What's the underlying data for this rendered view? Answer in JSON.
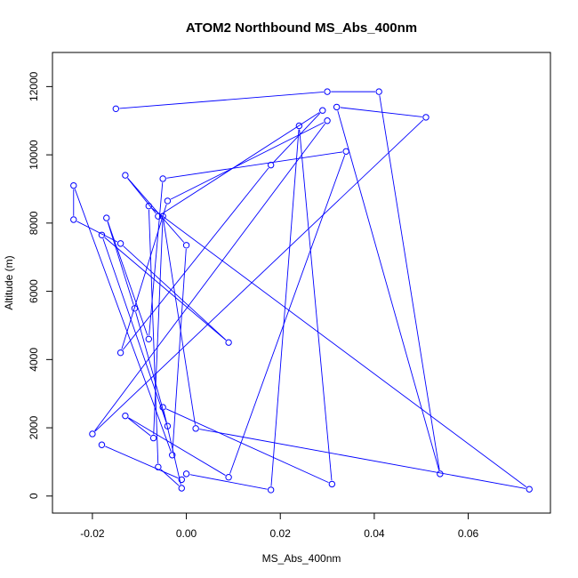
{
  "chart_data": {
    "type": "scatter",
    "title": "ATOM2 Northbound MS_Abs_400nm",
    "xlabel": "MS_Abs_400nm",
    "ylabel": "Altitude (m)",
    "xlim": [
      -0.0285,
      0.0775
    ],
    "ylim": [
      -500,
      13000
    ],
    "x_ticks": [
      -0.02,
      0.0,
      0.02,
      0.04,
      0.06
    ],
    "x_tick_labels": [
      "-0.02",
      "0.00",
      "0.02",
      "0.04",
      "0.06"
    ],
    "y_ticks": [
      0,
      2000,
      4000,
      6000,
      8000,
      10000,
      12000
    ],
    "y_tick_labels": [
      "0",
      "2000",
      "4000",
      "6000",
      "8000",
      "10000",
      "12000"
    ],
    "grid": false,
    "legend": "none",
    "series": [
      {
        "style": "points-and-lines",
        "color": "#0000ff",
        "x": [
          -0.015,
          0.03,
          0.041,
          0.054,
          0.032,
          0.051,
          -0.02,
          0.03,
          -0.004,
          -0.014,
          0.018,
          0.029,
          -0.006,
          -0.013,
          0.0,
          -0.003,
          -0.024,
          -0.024,
          -0.014,
          0.009,
          -0.018,
          -0.004,
          -0.011,
          -0.017,
          -0.008,
          -0.005,
          0.034,
          0.009,
          -0.013,
          -0.007,
          -0.005,
          0.002,
          0.073,
          -0.008,
          -0.006,
          -0.001,
          -0.005,
          0.031,
          0.024,
          0.018,
          0.0,
          -0.001,
          -0.018
        ],
        "y": [
          11350,
          11850,
          11850,
          650,
          11400,
          11100,
          1820,
          11000,
          8650,
          4200,
          9700,
          11300,
          8200,
          9400,
          7350,
          1200,
          9100,
          8100,
          7400,
          4500,
          7650,
          2050,
          5500,
          8150,
          4600,
          9300,
          10100,
          550,
          2350,
          1700,
          8200,
          1980,
          200,
          8500,
          850,
          230,
          2600,
          350,
          10850,
          180,
          650,
          480,
          1500
        ]
      }
    ]
  }
}
